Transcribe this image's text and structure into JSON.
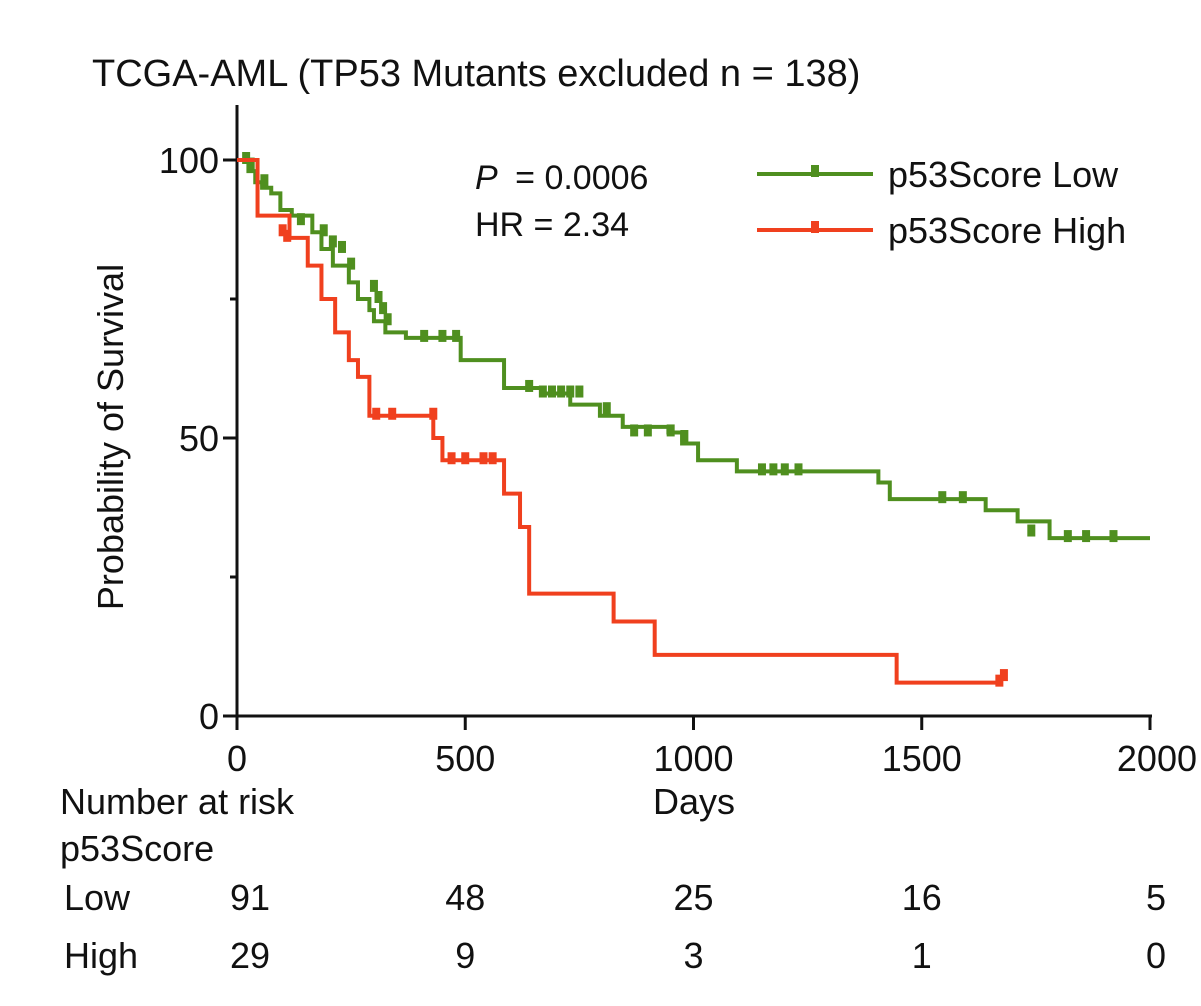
{
  "chart_data": {
    "type": "line",
    "subtype": "kaplan-meier",
    "title": "TCGA-AML (TP53 Mutants excluded n = 138)",
    "xlabel": "Days",
    "ylabel": "Probability of Survival",
    "xlim": [
      0,
      2000
    ],
    "ylim": [
      0,
      100
    ],
    "x_ticks": [
      0,
      500,
      1000,
      1500,
      2000
    ],
    "y_ticks": [
      0,
      50,
      100
    ],
    "y_minor_ticks": [
      25,
      75
    ],
    "annotations": {
      "p_label": "P",
      "p_value": "= 0.0006",
      "hr": "HR = 2.34"
    },
    "legend_position": "top-right",
    "series": [
      {
        "name": "p53Score Low",
        "color": "#4f8f1f",
        "steps": [
          [
            0,
            100
          ],
          [
            18,
            100
          ],
          [
            25,
            98
          ],
          [
            40,
            96
          ],
          [
            55,
            95
          ],
          [
            75,
            94
          ],
          [
            95,
            91
          ],
          [
            120,
            90
          ],
          [
            165,
            87
          ],
          [
            185,
            84
          ],
          [
            210,
            81
          ],
          [
            245,
            78
          ],
          [
            265,
            75
          ],
          [
            290,
            73
          ],
          [
            300,
            71
          ],
          [
            325,
            69
          ],
          [
            370,
            68
          ],
          [
            490,
            64
          ],
          [
            585,
            59
          ],
          [
            670,
            58
          ],
          [
            730,
            56
          ],
          [
            795,
            54
          ],
          [
            845,
            52
          ],
          [
            945,
            51
          ],
          [
            975,
            49
          ],
          [
            1010,
            46
          ],
          [
            1095,
            44
          ],
          [
            1405,
            42
          ],
          [
            1430,
            39
          ],
          [
            1640,
            37
          ],
          [
            1710,
            35
          ],
          [
            1780,
            32
          ],
          [
            2000,
            32
          ]
        ],
        "censors": [
          [
            20,
            100
          ],
          [
            30,
            99
          ],
          [
            60,
            96
          ],
          [
            140,
            89
          ],
          [
            190,
            87
          ],
          [
            210,
            85
          ],
          [
            230,
            84
          ],
          [
            250,
            81
          ],
          [
            300,
            77
          ],
          [
            310,
            75
          ],
          [
            320,
            73
          ],
          [
            330,
            71
          ],
          [
            410,
            68
          ],
          [
            450,
            68
          ],
          [
            480,
            68
          ],
          [
            640,
            59
          ],
          [
            670,
            58
          ],
          [
            690,
            58
          ],
          [
            710,
            58
          ],
          [
            730,
            58
          ],
          [
            750,
            58
          ],
          [
            810,
            55
          ],
          [
            870,
            51
          ],
          [
            900,
            51
          ],
          [
            950,
            51
          ],
          [
            980,
            50
          ],
          [
            1150,
            44
          ],
          [
            1175,
            44
          ],
          [
            1200,
            44
          ],
          [
            1230,
            44
          ],
          [
            1545,
            39
          ],
          [
            1590,
            39
          ],
          [
            1740,
            33
          ],
          [
            1820,
            32
          ],
          [
            1860,
            32
          ],
          [
            1920,
            32
          ]
        ]
      },
      {
        "name": "p53Score High",
        "color": "#f0401e",
        "steps": [
          [
            0,
            100
          ],
          [
            35,
            100
          ],
          [
            45,
            90
          ],
          [
            115,
            86
          ],
          [
            155,
            81
          ],
          [
            185,
            75
          ],
          [
            215,
            69
          ],
          [
            245,
            64
          ],
          [
            265,
            61
          ],
          [
            290,
            54
          ],
          [
            395,
            54
          ],
          [
            430,
            50
          ],
          [
            450,
            46
          ],
          [
            545,
            46
          ],
          [
            585,
            40
          ],
          [
            620,
            34
          ],
          [
            640,
            22
          ],
          [
            735,
            22
          ],
          [
            825,
            17
          ],
          [
            915,
            11
          ],
          [
            1420,
            11
          ],
          [
            1445,
            6
          ],
          [
            1670,
            6
          ]
        ],
        "censors": [
          [
            100,
            87
          ],
          [
            110,
            86
          ],
          [
            305,
            54
          ],
          [
            340,
            54
          ],
          [
            430,
            54
          ],
          [
            470,
            46
          ],
          [
            500,
            46
          ],
          [
            540,
            46
          ],
          [
            560,
            46
          ],
          [
            1670,
            6
          ],
          [
            1680,
            7
          ]
        ]
      }
    ],
    "risk_table": {
      "title": "Number at risk",
      "subtitle": "p53Score",
      "times": [
        0,
        500,
        1000,
        1500,
        2000
      ],
      "rows": [
        {
          "label": "Low",
          "values": [
            "91",
            "48",
            "25",
            "16",
            "5"
          ]
        },
        {
          "label": "High",
          "values": [
            "29",
            "9",
            "3",
            "1",
            "0"
          ]
        }
      ]
    }
  }
}
